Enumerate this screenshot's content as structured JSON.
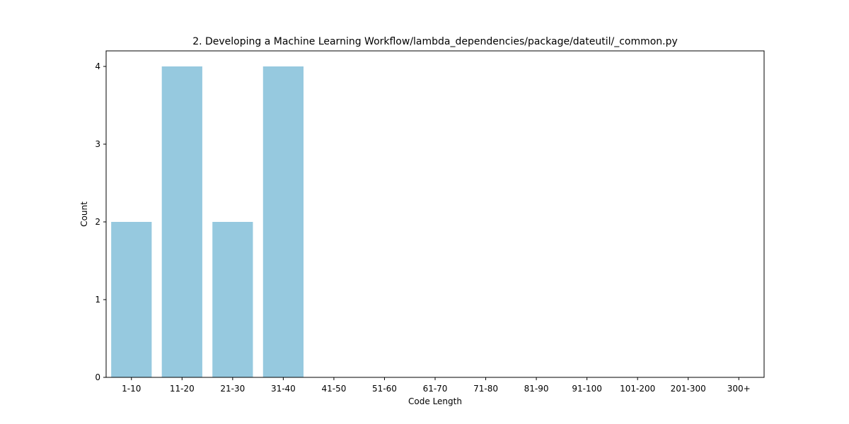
{
  "chart_data": {
    "type": "bar",
    "title": "2. Developing a Machine Learning Workflow/lambda_dependencies/package/dateutil/_common.py",
    "xlabel": "Code Length",
    "ylabel": "Count",
    "categories": [
      "1-10",
      "11-20",
      "21-30",
      "31-40",
      "41-50",
      "51-60",
      "61-70",
      "71-80",
      "81-90",
      "91-100",
      "101-200",
      "201-300",
      "300+"
    ],
    "values": [
      2,
      4,
      2,
      4,
      0,
      0,
      0,
      0,
      0,
      0,
      0,
      0,
      0
    ],
    "yticks": [
      0,
      1,
      2,
      3,
      4
    ],
    "ylim": [
      0,
      4.2
    ],
    "bar_color": "#96c9df",
    "grid": false,
    "legend": "none"
  }
}
